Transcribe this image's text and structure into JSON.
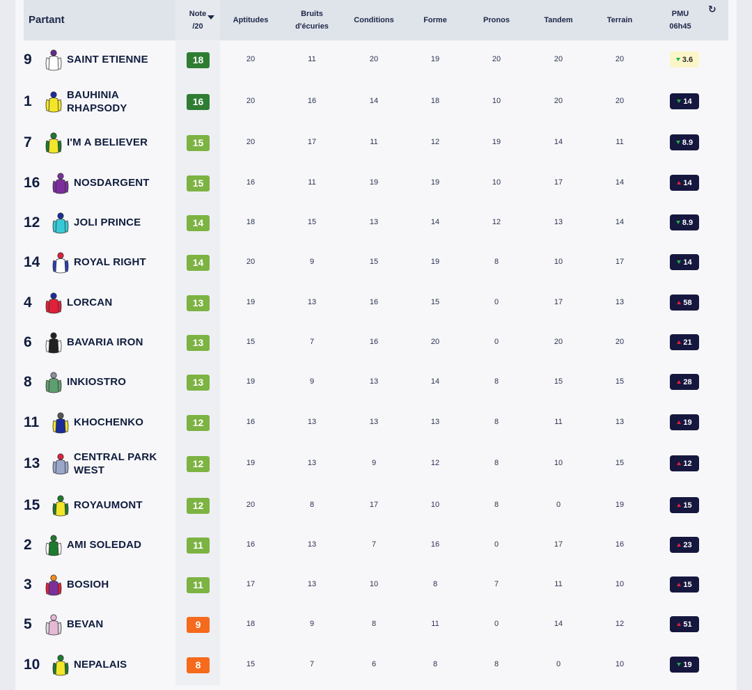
{
  "header": {
    "partant": "Partant",
    "note_line1": "Note",
    "note_line2": "/20",
    "aptitudes": "Aptitudes",
    "bruits_line1": "Bruits",
    "bruits_line2": "d'écuries",
    "conditions": "Conditions",
    "forme": "Forme",
    "pronos": "Pronos",
    "tandem": "Tandem",
    "terrain": "Terrain",
    "pmu_line1": "PMU",
    "pmu_line2": "06h45",
    "sort_icon": "sort-desc-icon",
    "refresh_icon": "refresh-icon"
  },
  "colors": {
    "note_dark_green": "#2e7d32",
    "note_green": "#7cb342",
    "note_orange": "#f56a1c",
    "odds_dark": "#16173f",
    "odds_fav": "#fbf5c8",
    "trend_up": "#e0213a",
    "trend_down": "#1fb34b"
  },
  "runners": [
    {
      "num": "9",
      "name": [
        "SAINT ETIENNE"
      ],
      "note": "18",
      "level": "dark",
      "apt": "20",
      "bruits": "11",
      "cond": "20",
      "forme": "19",
      "pronos": "20",
      "tandem": "20",
      "terrain": "20",
      "odds": "3.6",
      "trend": "down",
      "fav": true,
      "silk": {
        "body": "#ffffff",
        "sleeve": "#ffffff",
        "cap": "#6a2a8a"
      }
    },
    {
      "num": "1",
      "name": [
        "BAUHINIA",
        "RHAPSODY"
      ],
      "note": "16",
      "level": "dark",
      "apt": "20",
      "bruits": "16",
      "cond": "14",
      "forme": "18",
      "pronos": "10",
      "tandem": "20",
      "terrain": "20",
      "odds": "14",
      "trend": "down",
      "fav": false,
      "silk": {
        "body": "#f2e52a",
        "sleeve": "#f2e52a",
        "cap": "#1b2c9a"
      }
    },
    {
      "num": "7",
      "name": [
        "I'M A BELIEVER"
      ],
      "note": "15",
      "level": "green",
      "apt": "20",
      "bruits": "17",
      "cond": "11",
      "forme": "12",
      "pronos": "19",
      "tandem": "14",
      "terrain": "11",
      "odds": "8.9",
      "trend": "down",
      "fav": false,
      "silk": {
        "body": "#f2e52a",
        "sleeve": "#1e7a2e",
        "cap": "#1e7a2e"
      }
    },
    {
      "num": "16",
      "name": [
        "NOSDARGENT"
      ],
      "note": "15",
      "level": "green",
      "apt": "16",
      "bruits": "11",
      "cond": "19",
      "forme": "19",
      "pronos": "10",
      "tandem": "17",
      "terrain": "14",
      "odds": "14",
      "trend": "up",
      "fav": false,
      "silk": {
        "body": "#7b2f9c",
        "sleeve": "#7b2f9c",
        "cap": "#7b2f9c"
      }
    },
    {
      "num": "12",
      "name": [
        "JOLI PRINCE"
      ],
      "note": "14",
      "level": "green",
      "apt": "18",
      "bruits": "15",
      "cond": "13",
      "forme": "14",
      "pronos": "12",
      "tandem": "13",
      "terrain": "14",
      "odds": "8.9",
      "trend": "down",
      "fav": false,
      "silk": {
        "body": "#38c9d6",
        "sleeve": "#38c9d6",
        "cap": "#1b2c9a"
      }
    },
    {
      "num": "14",
      "name": [
        "ROYAL RIGHT"
      ],
      "note": "14",
      "level": "green",
      "apt": "20",
      "bruits": "9",
      "cond": "15",
      "forme": "19",
      "pronos": "8",
      "tandem": "10",
      "terrain": "17",
      "odds": "14",
      "trend": "down",
      "fav": false,
      "silk": {
        "body": "#ffffff",
        "sleeve": "#2a3fb5",
        "cap": "#e0213a"
      }
    },
    {
      "num": "4",
      "name": [
        "LORCAN"
      ],
      "note": "13",
      "level": "green",
      "apt": "19",
      "bruits": "13",
      "cond": "16",
      "forme": "15",
      "pronos": "0",
      "tandem": "17",
      "terrain": "13",
      "odds": "58",
      "trend": "up",
      "fav": false,
      "silk": {
        "body": "#e0213a",
        "sleeve": "#e0213a",
        "cap": "#1b2c9a"
      }
    },
    {
      "num": "6",
      "name": [
        "BAVARIA IRON"
      ],
      "note": "13",
      "level": "green",
      "apt": "15",
      "bruits": "7",
      "cond": "16",
      "forme": "20",
      "pronos": "0",
      "tandem": "20",
      "terrain": "20",
      "odds": "21",
      "trend": "up",
      "fav": false,
      "silk": {
        "body": "#222222",
        "sleeve": "#ffffff",
        "cap": "#222222"
      }
    },
    {
      "num": "8",
      "name": [
        "INKIOSTRO"
      ],
      "note": "13",
      "level": "green",
      "apt": "19",
      "bruits": "9",
      "cond": "13",
      "forme": "14",
      "pronos": "8",
      "tandem": "15",
      "terrain": "15",
      "odds": "28",
      "trend": "up",
      "fav": false,
      "silk": {
        "body": "#5f9e6e",
        "sleeve": "#5f9e6e",
        "cap": "#8a8fa0"
      }
    },
    {
      "num": "11",
      "name": [
        "KHOCHENKO"
      ],
      "note": "12",
      "level": "green",
      "apt": "16",
      "bruits": "13",
      "cond": "13",
      "forme": "13",
      "pronos": "8",
      "tandem": "11",
      "terrain": "13",
      "odds": "19",
      "trend": "up",
      "fav": false,
      "silk": {
        "body": "#1b2c9a",
        "sleeve": "#f2e52a",
        "cap": "#555555"
      }
    },
    {
      "num": "13",
      "name": [
        "CENTRAL PARK",
        "WEST"
      ],
      "note": "12",
      "level": "green",
      "apt": "19",
      "bruits": "13",
      "cond": "9",
      "forme": "12",
      "pronos": "8",
      "tandem": "10",
      "terrain": "15",
      "odds": "12",
      "trend": "up",
      "fav": false,
      "silk": {
        "body": "#9aa7c9",
        "sleeve": "#9aa7c9",
        "cap": "#e0213a"
      }
    },
    {
      "num": "15",
      "name": [
        "ROYAUMONT"
      ],
      "note": "12",
      "level": "green",
      "apt": "20",
      "bruits": "8",
      "cond": "17",
      "forme": "10",
      "pronos": "8",
      "tandem": "0",
      "terrain": "19",
      "odds": "15",
      "trend": "up",
      "fav": false,
      "silk": {
        "body": "#f2e52a",
        "sleeve": "#1e7a2e",
        "cap": "#1e7a2e"
      }
    },
    {
      "num": "2",
      "name": [
        "AMI SOLEDAD"
      ],
      "note": "11",
      "level": "green",
      "apt": "16",
      "bruits": "13",
      "cond": "7",
      "forme": "16",
      "pronos": "0",
      "tandem": "17",
      "terrain": "16",
      "odds": "23",
      "trend": "up",
      "fav": false,
      "silk": {
        "body": "#1e7a2e",
        "sleeve": "#ffffff",
        "cap": "#1e7a2e"
      }
    },
    {
      "num": "3",
      "name": [
        "BOSIOH"
      ],
      "note": "11",
      "level": "green",
      "apt": "17",
      "bruits": "13",
      "cond": "10",
      "forme": "8",
      "pronos": "7",
      "tandem": "11",
      "terrain": "10",
      "odds": "15",
      "trend": "up",
      "fav": false,
      "silk": {
        "body": "#7b2f9c",
        "sleeve": "#e0213a",
        "cap": "#f28a1c"
      }
    },
    {
      "num": "5",
      "name": [
        "BEVAN"
      ],
      "note": "9",
      "level": "orange",
      "apt": "18",
      "bruits": "9",
      "cond": "8",
      "forme": "11",
      "pronos": "0",
      "tandem": "14",
      "terrain": "12",
      "odds": "51",
      "trend": "up",
      "fav": false,
      "silk": {
        "body": "#e7b8d6",
        "sleeve": "#d9d9d9",
        "cap": "#e7b8d6"
      }
    },
    {
      "num": "10",
      "name": [
        "NEPALAIS"
      ],
      "note": "8",
      "level": "orange",
      "apt": "15",
      "bruits": "7",
      "cond": "6",
      "forme": "8",
      "pronos": "8",
      "tandem": "0",
      "terrain": "10",
      "odds": "19",
      "trend": "down",
      "fav": false,
      "silk": {
        "body": "#f2e52a",
        "sleeve": "#1e7a2e",
        "cap": "#1e7a2e"
      }
    }
  ]
}
